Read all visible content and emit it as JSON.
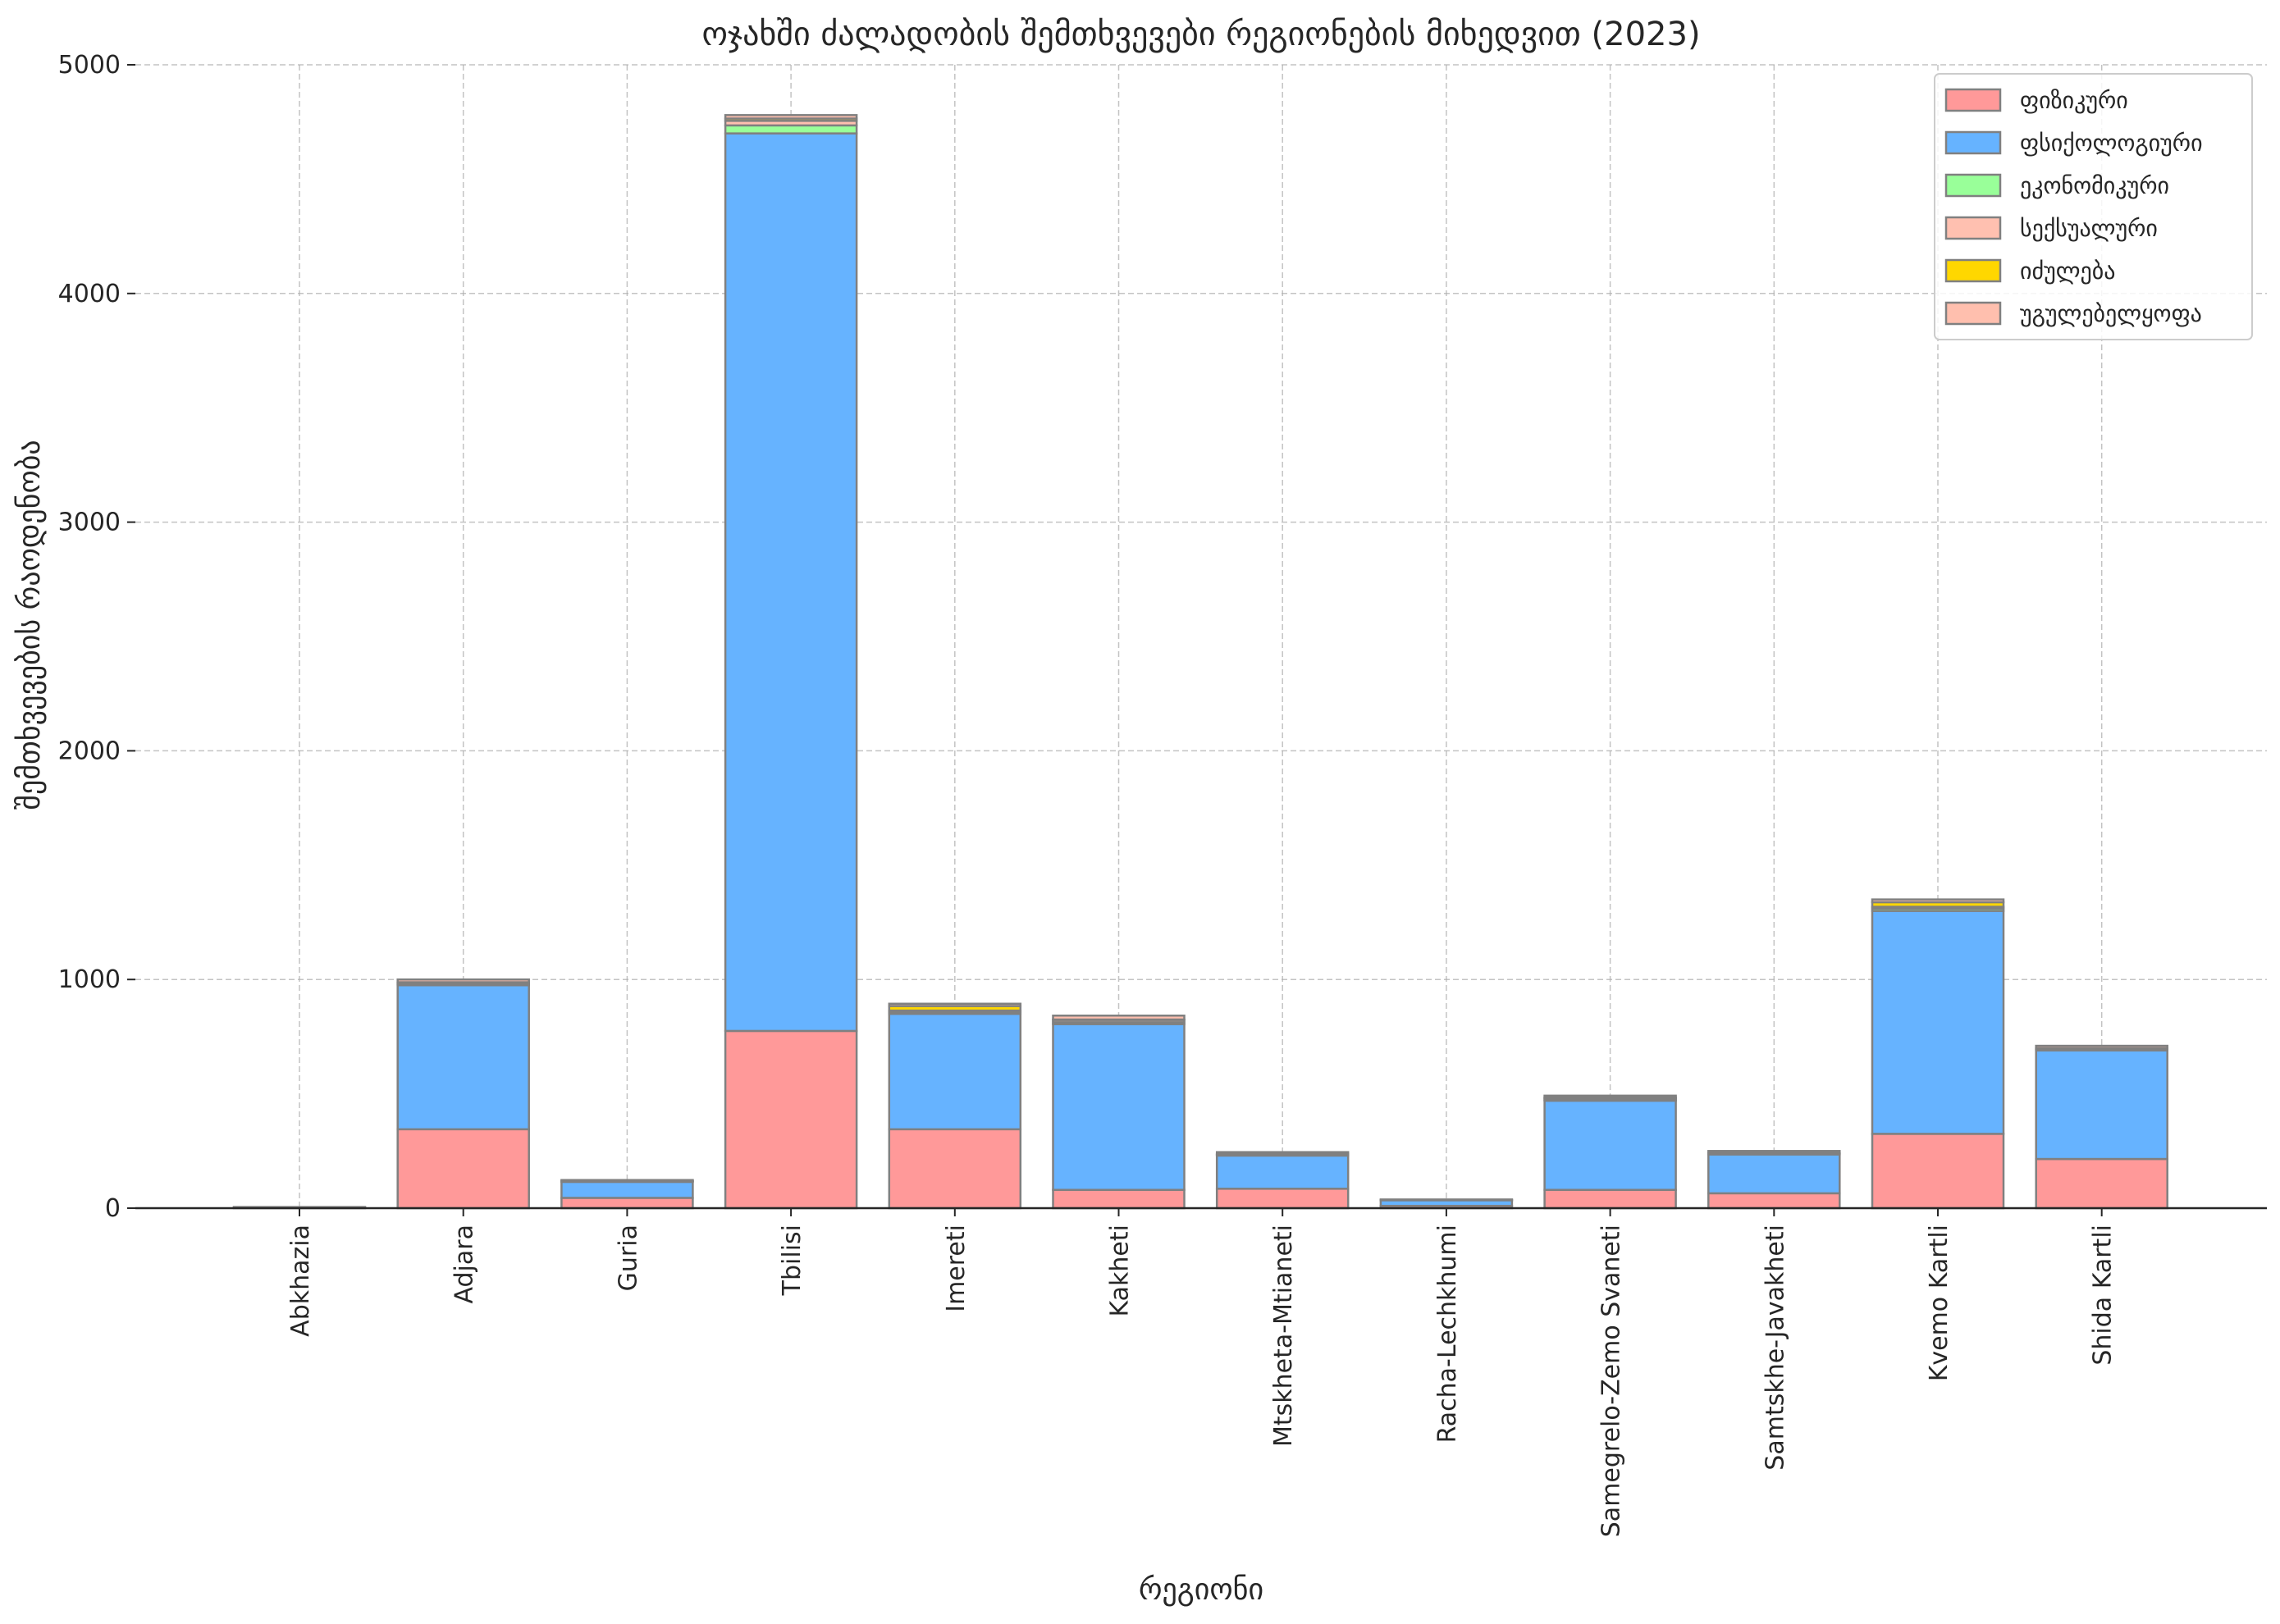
{
  "chart_data": {
    "type": "bar",
    "stacked": true,
    "title": "ოჯახში ძალადობის შემთხვევები რეგიონების მიხედვით (2023)",
    "xlabel": "რეგიონი",
    "ylabel": "შემთხვევების რაოდენობა",
    "ylim": [
      0,
      5000
    ],
    "yticks": [
      0,
      1000,
      2000,
      3000,
      4000,
      5000
    ],
    "grid": true,
    "legend_position": "top-right",
    "categories": [
      "Abkhazia",
      "Adjara",
      "Guria",
      "Tbilisi",
      "Imereti",
      "Kakheti",
      "Mtskheta-Mtianeti",
      "Racha-Lechkhumi",
      "Samegrelo-Zemo Svaneti",
      "Samtskhe-Javakheti",
      "Kvemo Kartli",
      "Shida Kartli"
    ],
    "series": [
      {
        "name": "ფიზიკური",
        "color": "#ff9999",
        "values": [
          2,
          345,
          45,
          775,
          345,
          80,
          85,
          10,
          80,
          65,
          325,
          215
        ]
      },
      {
        "name": "ფსიქოლოგიური",
        "color": "#66b3ff",
        "values": [
          3,
          630,
          70,
          3925,
          505,
          725,
          145,
          25,
          390,
          170,
          975,
          475
        ]
      },
      {
        "name": "ეკონომიკური",
        "color": "#99ff99",
        "values": [
          0,
          4,
          2,
          35,
          8,
          8,
          2,
          0,
          5,
          2,
          10,
          3
        ]
      },
      {
        "name": "სექსუალური",
        "color": "#ffc0b0",
        "values": [
          0,
          6,
          2,
          20,
          6,
          10,
          3,
          1,
          6,
          3,
          8,
          4
        ]
      },
      {
        "name": "იძულება",
        "color": "#ffd700",
        "values": [
          0,
          3,
          1,
          10,
          20,
          2,
          2,
          0,
          3,
          2,
          20,
          3
        ]
      },
      {
        "name": "უგულებელყოფა",
        "color": "#ffbfae",
        "values": [
          0,
          12,
          3,
          15,
          10,
          17,
          8,
          2,
          8,
          8,
          12,
          10
        ]
      }
    ]
  }
}
